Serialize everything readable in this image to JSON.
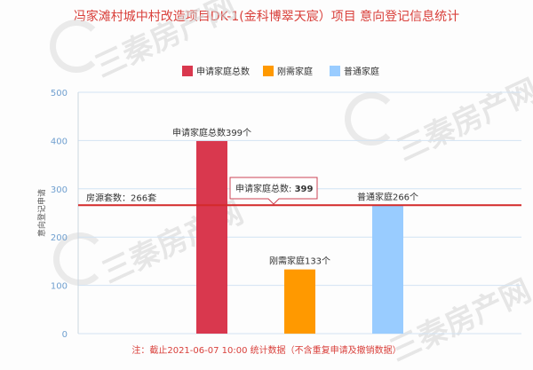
{
  "title": "冯家滩村城中村改造项目DK-1(金科博翠天宸）项目 意向登记信息统计",
  "watermark": {
    "logo_text": "三秦房产网",
    "color": "#d4d4d4"
  },
  "chart_data": {
    "type": "bar",
    "categories": [
      "申请家庭总数",
      "刚需家庭",
      "普通家庭"
    ],
    "values": [
      399,
      133,
      266
    ],
    "colors": [
      "#d9384e",
      "#ff9900",
      "#99ccff"
    ],
    "ylabel": "意向登记申请",
    "ylim": [
      0,
      500
    ],
    "yticks": [
      0,
      100,
      200,
      300,
      400,
      500
    ],
    "grid": true,
    "legend": {
      "position": "top",
      "entries": [
        "申请家庭总数",
        "刚需家庭",
        "普通家庭"
      ]
    },
    "data_labels": [
      "申请家庭总数399个",
      "刚需家庭133个",
      "普通家庭266个"
    ],
    "reference_line": {
      "value": 266,
      "label": "房源套数：266套",
      "color": "#d42a2a"
    },
    "tooltip": {
      "label": "申请家庭总数: ",
      "value": "399"
    }
  },
  "footnote": "注：截止2021-06-07 10:00 统计数据（不含重复申请及撤销数据）"
}
